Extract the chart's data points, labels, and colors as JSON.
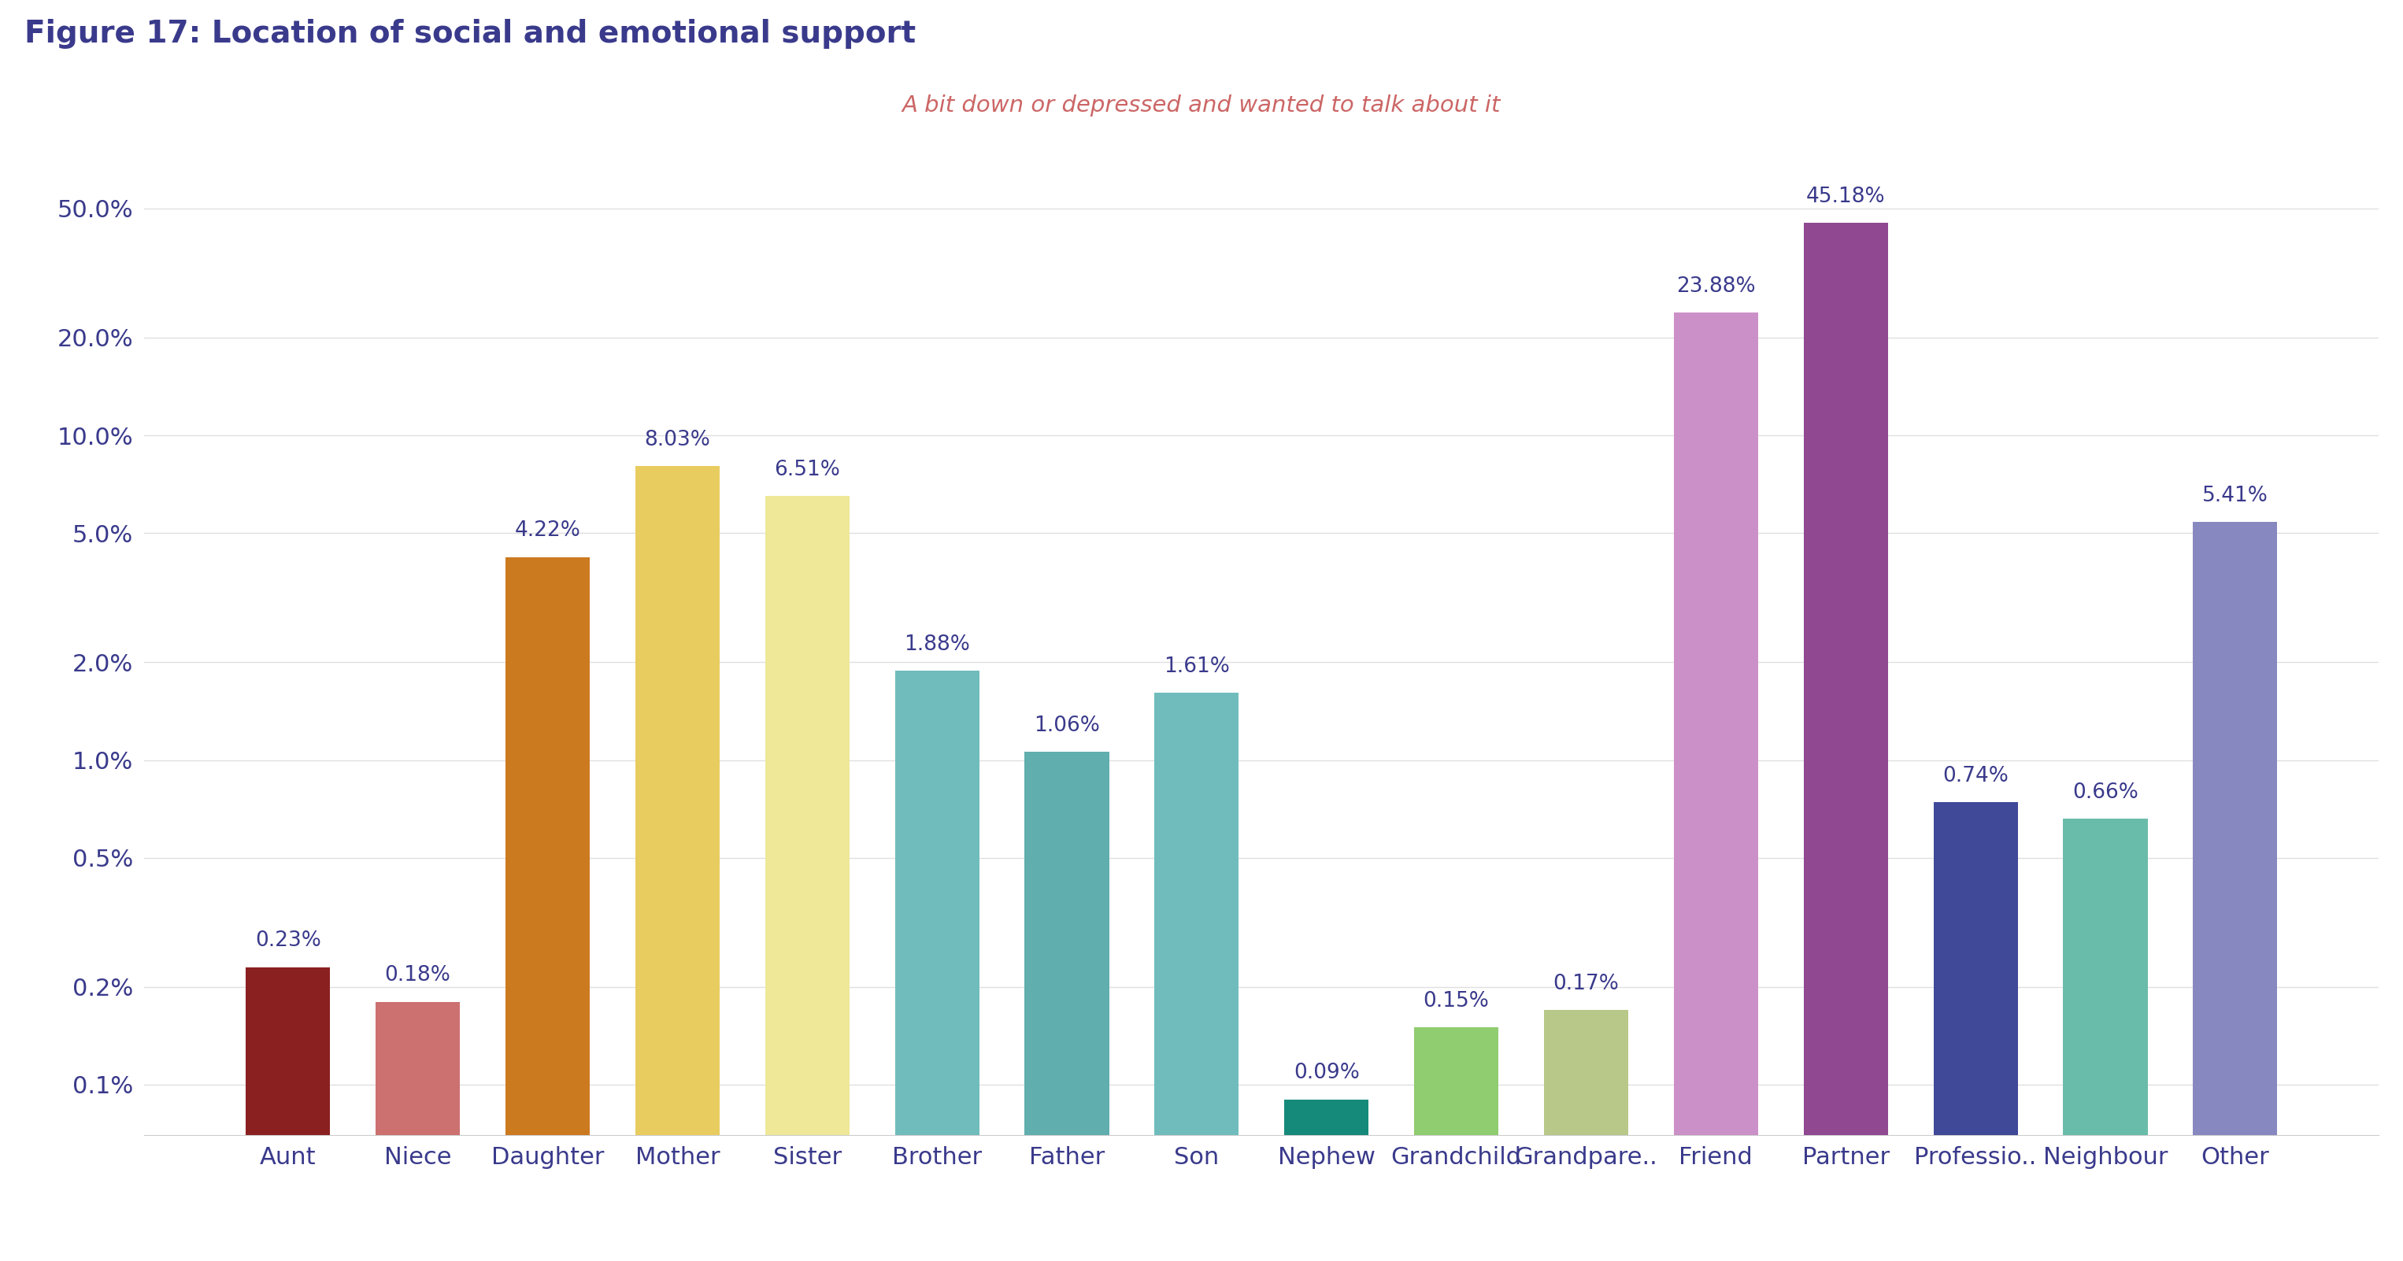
{
  "title": "Figure 17: Location of social and emotional support",
  "subtitle": "A bit down or depressed and wanted to talk about it",
  "categories": [
    "Aunt",
    "Niece",
    "Daughter",
    "Mother",
    "Sister",
    "Brother",
    "Father",
    "Son",
    "Nephew",
    "Grandchild",
    "Grandpare..",
    "Friend",
    "Partner",
    "Professio..",
    "Neighbour",
    "Other"
  ],
  "values": [
    0.23,
    0.18,
    4.22,
    8.03,
    6.51,
    1.88,
    1.06,
    1.61,
    0.09,
    0.15,
    0.17,
    23.88,
    45.18,
    0.74,
    0.66,
    5.41
  ],
  "bar_colors": [
    "#8B2020",
    "#CC7070",
    "#CC7A20",
    "#E8CC60",
    "#EEE898",
    "#70BCBC",
    "#60AEAE",
    "#70BCBC",
    "#158A7A",
    "#90CC70",
    "#B8C888",
    "#CC90C8",
    "#904890",
    "#404898",
    "#6ABCAA",
    "#8888C0"
  ],
  "title_color": "#3A3A8C",
  "subtitle_color": "#CC6666",
  "axis_color": "#3A3A8C",
  "ytick_values": [
    0.1,
    0.2,
    0.5,
    1.0,
    2.0,
    5.0,
    10.0,
    20.0,
    50.0
  ],
  "ytick_labels": [
    "0.1%",
    "0.2%",
    "0.5%",
    "1.0%",
    "2.0%",
    "5.0%",
    "10.0%",
    "20.0%",
    "50.0%"
  ],
  "background_color": "#ffffff",
  "ylim_min": 0.07,
  "ylim_max": 75,
  "bar_width": 0.65
}
